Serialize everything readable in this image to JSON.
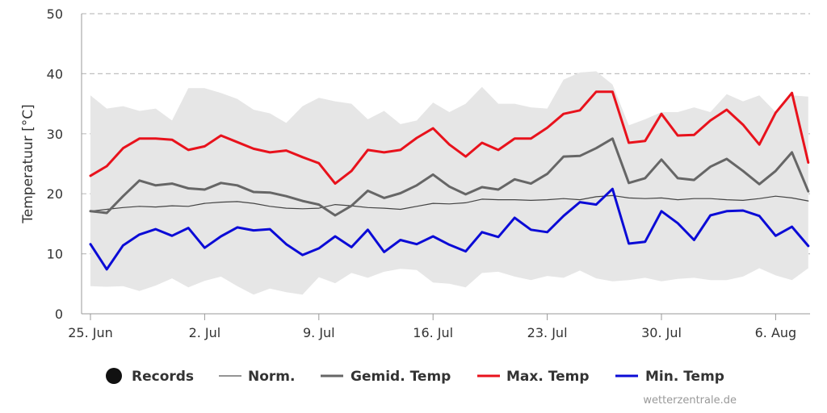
{
  "chart_data": {
    "type": "line",
    "ylabel": "Temperatuur [°C]",
    "ylim": [
      0,
      50
    ],
    "yticks": [
      0,
      10,
      20,
      30,
      40,
      50
    ],
    "grid": "horizontal dashed",
    "x_ticks": [
      {
        "day": 0,
        "label": "25. Jun"
      },
      {
        "day": 7,
        "label": "2. Jul"
      },
      {
        "day": 14,
        "label": "9. Jul"
      },
      {
        "day": 21,
        "label": "16. Jul"
      },
      {
        "day": 28,
        "label": "23. Jul"
      },
      {
        "day": 35,
        "label": "30. Jul"
      },
      {
        "day": 42,
        "label": "6. Aug"
      }
    ],
    "dates": [
      "25. Jun",
      "26. Jun",
      "27. Jun",
      "28. Jun",
      "29. Jun",
      "30. Jun",
      "1. Jul",
      "2. Jul",
      "3. Jul",
      "4. Jul",
      "5. Jul",
      "6. Jul",
      "7. Jul",
      "8. Jul",
      "9. Jul",
      "10. Jul",
      "11. Jul",
      "12. Jul",
      "13. Jul",
      "14. Jul",
      "15. Jul",
      "16. Jul",
      "17. Jul",
      "18. Jul",
      "19. Jul",
      "20. Jul",
      "21. Jul",
      "22. Jul",
      "23. Jul",
      "24. Jul",
      "25. Jul",
      "26. Jul",
      "27. Jul",
      "28. Jul",
      "29. Jul",
      "30. Jul",
      "31. Jul",
      "1. Aug",
      "2. Aug",
      "3. Aug",
      "4. Aug",
      "5. Aug",
      "6. Aug",
      "7. Aug",
      "8. Aug"
    ],
    "records_band": {
      "name": "Records",
      "upper": [
        36.4,
        34.2,
        34.6,
        33.8,
        34.2,
        32.2,
        37.6,
        37.6,
        36.8,
        35.8,
        34.0,
        33.4,
        31.8,
        34.6,
        36.0,
        35.4,
        35.0,
        32.4,
        33.8,
        31.6,
        32.2,
        35.2,
        33.6,
        35.0,
        37.8,
        35.0,
        35.0,
        34.4,
        34.2,
        39.0,
        40.2,
        40.4,
        38.2,
        31.4,
        32.4,
        33.6,
        33.6,
        34.4,
        33.6,
        36.6,
        35.4,
        36.4,
        33.6,
        36.4,
        36.2
      ],
      "lower": [
        4.6,
        4.5,
        4.6,
        3.8,
        4.7,
        5.9,
        4.4,
        5.5,
        6.2,
        4.6,
        3.2,
        4.2,
        3.6,
        3.2,
        6.1,
        5.1,
        6.8,
        6.0,
        7.0,
        7.5,
        7.3,
        5.2,
        5.0,
        4.4,
        6.8,
        7.0,
        6.2,
        5.6,
        6.3,
        6.0,
        7.2,
        5.9,
        5.4,
        5.6,
        6.0,
        5.4,
        5.8,
        6.0,
        5.6,
        5.6,
        6.2,
        7.6,
        6.4,
        5.6,
        7.6
      ]
    },
    "series": [
      {
        "name": "Norm.",
        "color": "#444444",
        "values": [
          17.1,
          17.4,
          17.7,
          17.9,
          17.8,
          18.0,
          17.9,
          18.4,
          18.6,
          18.7,
          18.4,
          17.9,
          17.6,
          17.5,
          17.6,
          18.2,
          18.0,
          17.7,
          17.6,
          17.4,
          17.9,
          18.4,
          18.3,
          18.5,
          19.1,
          19.0,
          19.0,
          18.9,
          19.0,
          19.2,
          19.0,
          19.5,
          19.7,
          19.3,
          19.2,
          19.3,
          19.0,
          19.2,
          19.2,
          19.0,
          18.9,
          19.2,
          19.6,
          19.3,
          18.8
        ]
      },
      {
        "name": "Gemid. Temp",
        "color": "#666666",
        "values": [
          17.1,
          16.8,
          19.6,
          22.2,
          21.4,
          21.7,
          20.9,
          20.7,
          21.8,
          21.4,
          20.3,
          20.2,
          19.6,
          18.8,
          18.2,
          16.4,
          18.0,
          20.5,
          19.3,
          20.1,
          21.4,
          23.2,
          21.2,
          19.9,
          21.1,
          20.7,
          22.4,
          21.7,
          23.3,
          26.2,
          26.3,
          27.6,
          29.2,
          21.8,
          22.6,
          25.7,
          22.6,
          22.3,
          24.5,
          25.8,
          23.8,
          21.6,
          23.8,
          26.9,
          20.4
        ]
      },
      {
        "name": "Max. Temp",
        "color": "#e8121c",
        "values": [
          23.0,
          24.6,
          27.6,
          29.2,
          29.2,
          29.0,
          27.3,
          27.9,
          29.7,
          28.6,
          27.5,
          26.9,
          27.2,
          26.1,
          25.1,
          21.7,
          23.8,
          27.3,
          26.9,
          27.3,
          29.3,
          30.9,
          28.2,
          26.2,
          28.5,
          27.3,
          29.2,
          29.2,
          31.0,
          33.3,
          33.9,
          37.0,
          37.0,
          28.5,
          28.8,
          33.3,
          29.7,
          29.8,
          32.2,
          34.0,
          31.5,
          28.2,
          33.5,
          36.8,
          25.2
        ]
      },
      {
        "name": "Min. Temp",
        "color": "#0b0bd6",
        "values": [
          11.6,
          7.4,
          11.4,
          13.2,
          14.1,
          13.0,
          14.3,
          11.0,
          12.9,
          14.4,
          13.9,
          14.1,
          11.6,
          9.8,
          10.9,
          12.9,
          11.1,
          14.0,
          10.3,
          12.3,
          11.6,
          12.9,
          11.5,
          10.4,
          13.6,
          12.8,
          16.0,
          14.0,
          13.6,
          16.3,
          18.6,
          18.2,
          20.8,
          11.7,
          12.0,
          17.1,
          15.1,
          12.3,
          16.4,
          17.1,
          17.2,
          16.3,
          13.0,
          14.5,
          11.3
        ]
      }
    ]
  },
  "legend": [
    {
      "key": "records",
      "label": "Records",
      "symbol": "circle",
      "color": "#111111"
    },
    {
      "key": "norm",
      "label": "Norm.",
      "symbol": "thin-line",
      "color": "#555555"
    },
    {
      "key": "avg",
      "label": "Gemid. Temp",
      "symbol": "line",
      "color": "#666666"
    },
    {
      "key": "max",
      "label": "Max. Temp",
      "symbol": "line",
      "color": "#e8121c"
    },
    {
      "key": "min",
      "label": "Min. Temp",
      "symbol": "line",
      "color": "#0b0bd6"
    }
  ],
  "credit": "wetterzentrale.de",
  "colors": {
    "band": "#e6e6e6",
    "grid": "#c0c0c0",
    "axis": "#999999"
  }
}
